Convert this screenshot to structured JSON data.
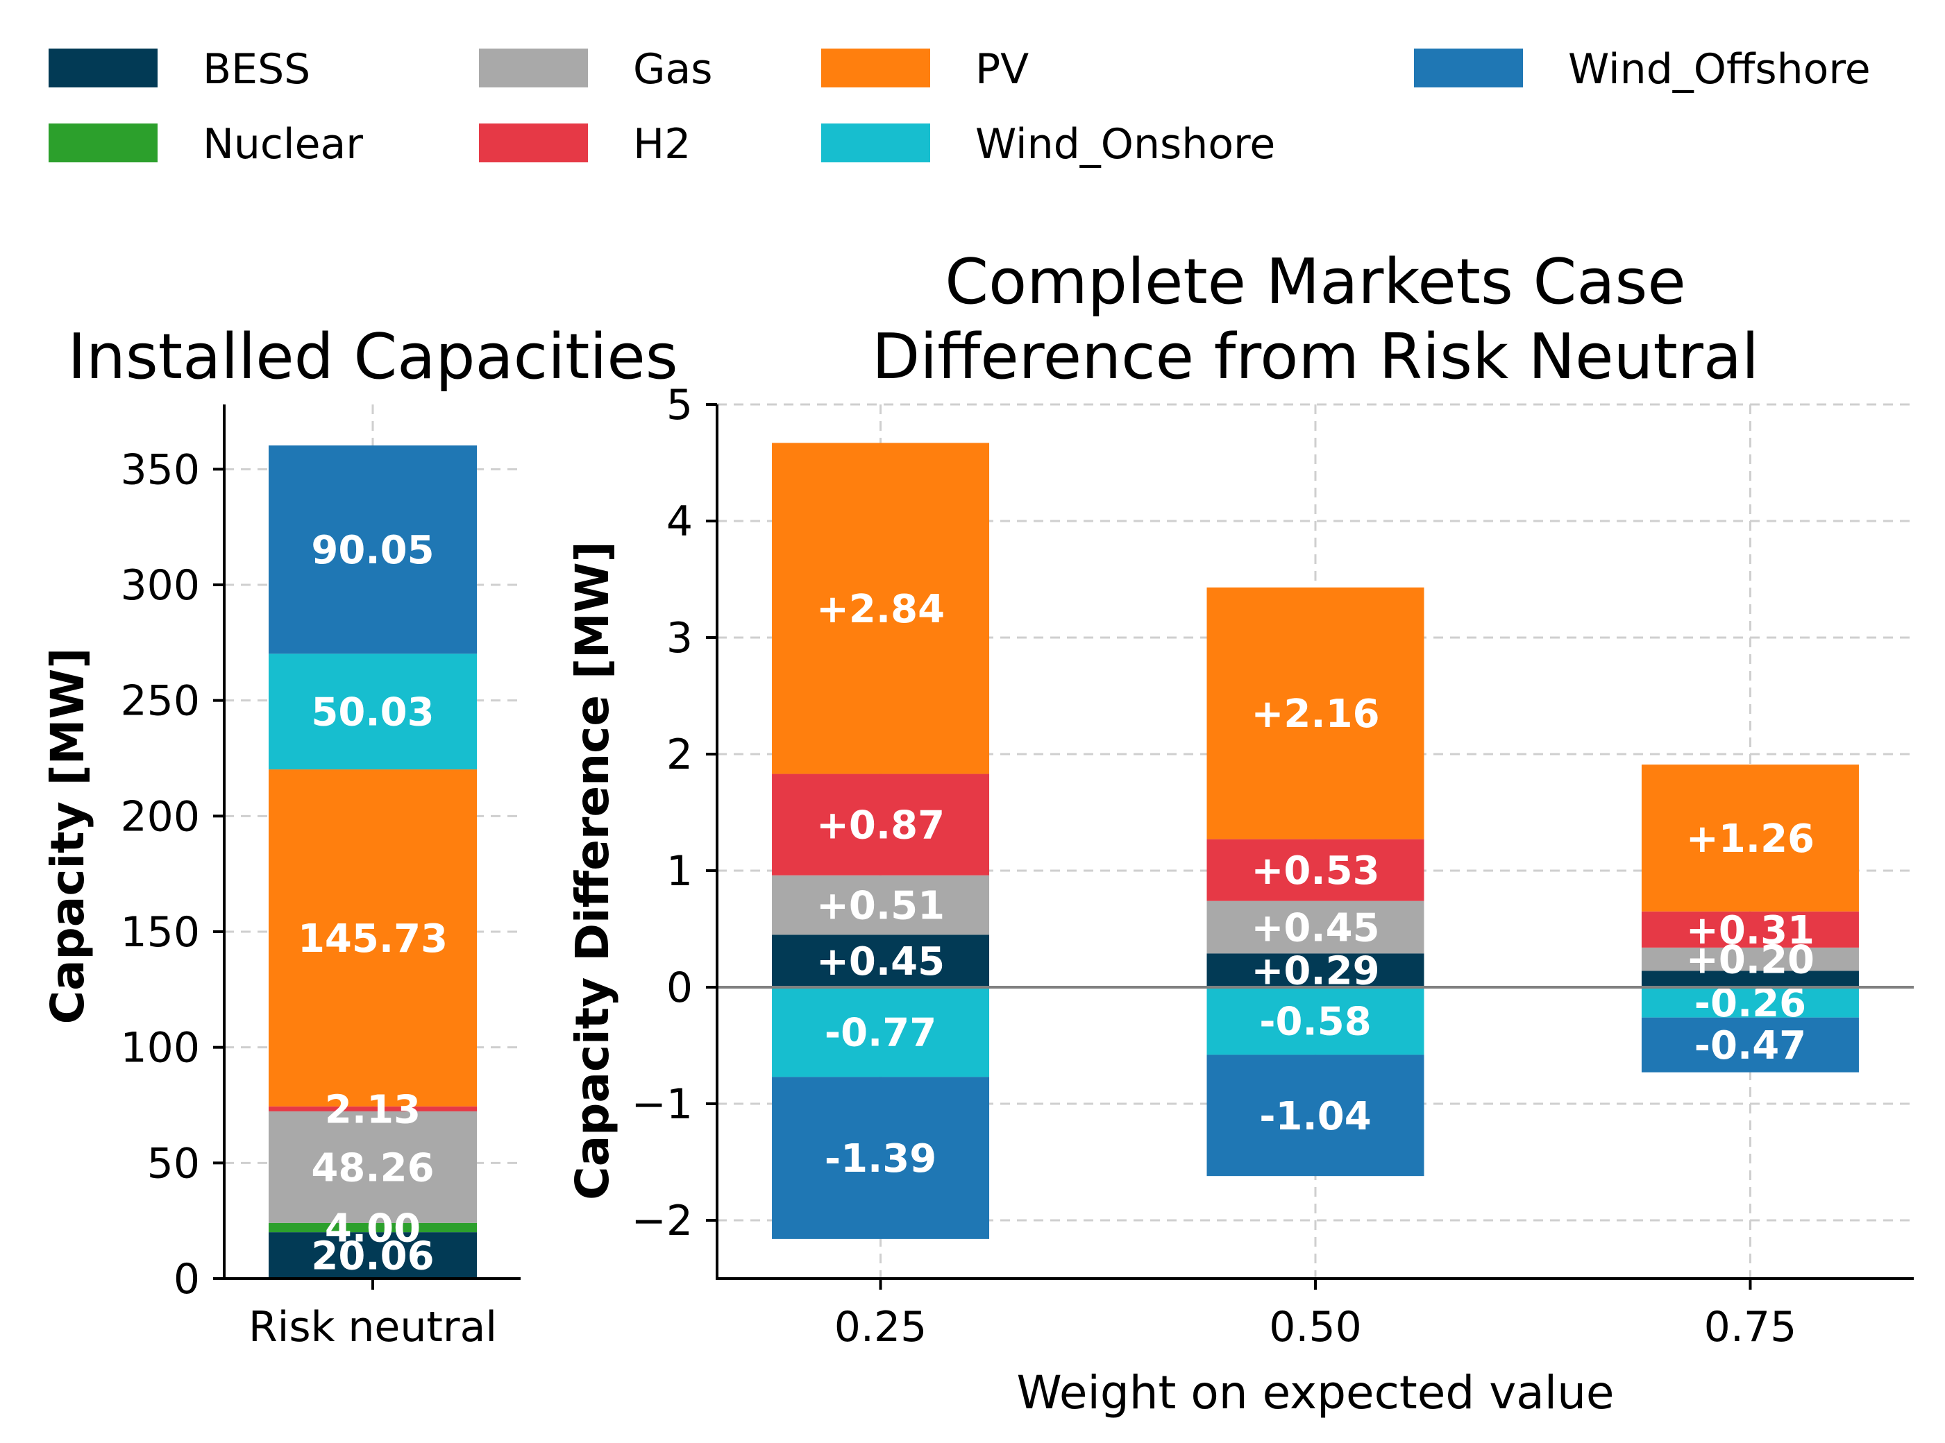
{
  "chart_data": [
    {
      "type": "bar",
      "stacked": true,
      "title": "Installed Capacities",
      "xlabel": "",
      "ylabel": "Capacity [MW]",
      "categories": [
        "Risk neutral"
      ],
      "ylim": [
        0,
        378
      ],
      "yticks": [
        0,
        50,
        100,
        150,
        200,
        250,
        300,
        350
      ],
      "grid": true,
      "series": [
        {
          "name": "BESS",
          "values": [
            20.06
          ],
          "labels": [
            "20.06"
          ]
        },
        {
          "name": "Nuclear",
          "values": [
            4.0
          ],
          "labels": [
            "4.00"
          ]
        },
        {
          "name": "Gas",
          "values": [
            48.26
          ],
          "labels": [
            "48.26"
          ]
        },
        {
          "name": "H2",
          "values": [
            2.13
          ],
          "labels": [
            "2.13"
          ]
        },
        {
          "name": "PV",
          "values": [
            145.73
          ],
          "labels": [
            "145.73"
          ]
        },
        {
          "name": "Wind_Onshore",
          "values": [
            50.03
          ],
          "labels": [
            "50.03"
          ]
        },
        {
          "name": "Wind_Offshore",
          "values": [
            90.05
          ],
          "labels": [
            "90.05"
          ]
        }
      ]
    },
    {
      "type": "bar",
      "stacked": true,
      "title": [
        "Complete Markets Case",
        "Difference from Risk Neutral"
      ],
      "xlabel": "Weight on expected value",
      "ylabel": "Capacity Difference [MW]",
      "x": [
        0.25,
        0.5,
        0.75
      ],
      "categories": [
        "0.25",
        "0.50",
        "0.75"
      ],
      "ylim": [
        -2.5,
        5
      ],
      "xlim": [
        0.156,
        0.844
      ],
      "yticks": [
        -2,
        -1,
        0,
        1,
        2,
        3,
        4,
        5
      ],
      "ytick_labels": [
        "−2",
        "−1",
        "0",
        "1",
        "2",
        "3",
        "4",
        "5"
      ],
      "grid": true,
      "series": [
        {
          "name": "BESS",
          "values": [
            0.45,
            0.29,
            0.14
          ],
          "labels": [
            "+0.45",
            "+0.29",
            ""
          ]
        },
        {
          "name": "Gas",
          "values": [
            0.51,
            0.45,
            0.2
          ],
          "labels": [
            "+0.51",
            "+0.45",
            "+0.20"
          ]
        },
        {
          "name": "H2",
          "values": [
            0.87,
            0.53,
            0.31
          ],
          "labels": [
            "+0.87",
            "+0.53",
            "+0.31"
          ]
        },
        {
          "name": "PV",
          "values": [
            2.84,
            2.16,
            1.26
          ],
          "labels": [
            "+2.84",
            "+2.16",
            "+1.26"
          ]
        },
        {
          "name": "Wind_Onshore",
          "values": [
            -0.77,
            -0.58,
            -0.26
          ],
          "labels": [
            "-0.77",
            "-0.58",
            "-0.26"
          ]
        },
        {
          "name": "Wind_Offshore",
          "values": [
            -1.39,
            -1.04,
            -0.47
          ],
          "labels": [
            "-1.39",
            "-1.04",
            "-0.47"
          ]
        }
      ]
    }
  ],
  "legend": {
    "placement": "top",
    "entries": [
      {
        "name": "BESS",
        "color": "#023a55"
      },
      {
        "name": "Gas",
        "color": "#a9a9a9"
      },
      {
        "name": "PV",
        "color": "#ff7f0e"
      },
      {
        "name": "Wind_Offshore",
        "color": "#1f77b4"
      },
      {
        "name": "Nuclear",
        "color": "#2ca02c"
      },
      {
        "name": "H2",
        "color": "#e63946"
      },
      {
        "name": "Wind_Onshore",
        "color": "#17becf"
      }
    ]
  },
  "colors": {
    "BESS": "#023a55",
    "Nuclear": "#2ca02c",
    "Gas": "#a9a9a9",
    "H2": "#e63946",
    "PV": "#ff7f0e",
    "Wind_Onshore": "#17becf",
    "Wind_Offshore": "#1f77b4"
  }
}
